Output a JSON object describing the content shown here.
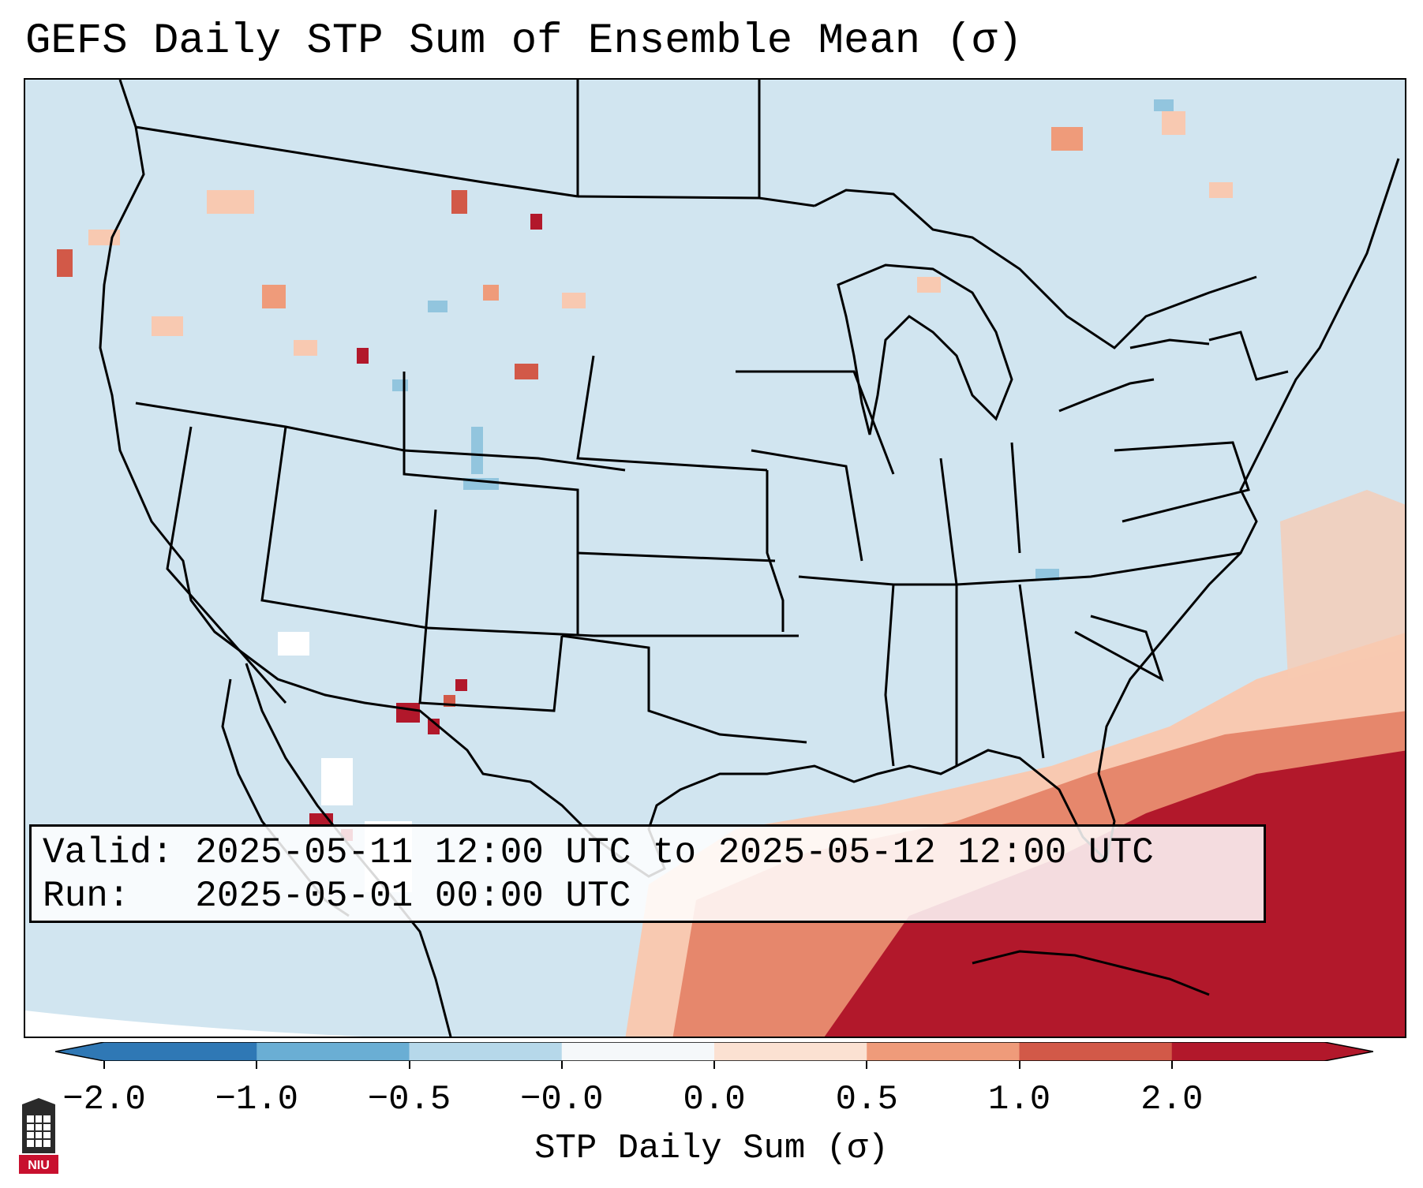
{
  "title": "GEFS Daily STP Sum of Ensemble Mean (σ)",
  "info": {
    "valid_line": "Valid: 2025-05-11 12:00 UTC to 2025-05-12 12:00 UTC",
    "run_line": "Run:   2025-05-01 00:00 UTC"
  },
  "colorbar": {
    "label": "STP Daily Sum (σ)",
    "ticks": [
      "−2.0",
      "−1.0",
      "−0.5",
      "−0.0",
      "0.0",
      "0.5",
      "1.0",
      "2.0"
    ],
    "colors": [
      "#2f78b5",
      "#6aaed4",
      "#b6d8ea",
      "#f5f8fa",
      "#fbe1d2",
      "#ef9b7a",
      "#d25948",
      "#b2182b"
    ],
    "extend": "both"
  },
  "colors": {
    "ocean_land_background": "#d1e5f0",
    "high_anomaly": "#b2182b",
    "moderate_anomaly": "#e0775f",
    "low_anomaly": "#f8c9b1"
  },
  "logo": {
    "text": "NIU"
  }
}
